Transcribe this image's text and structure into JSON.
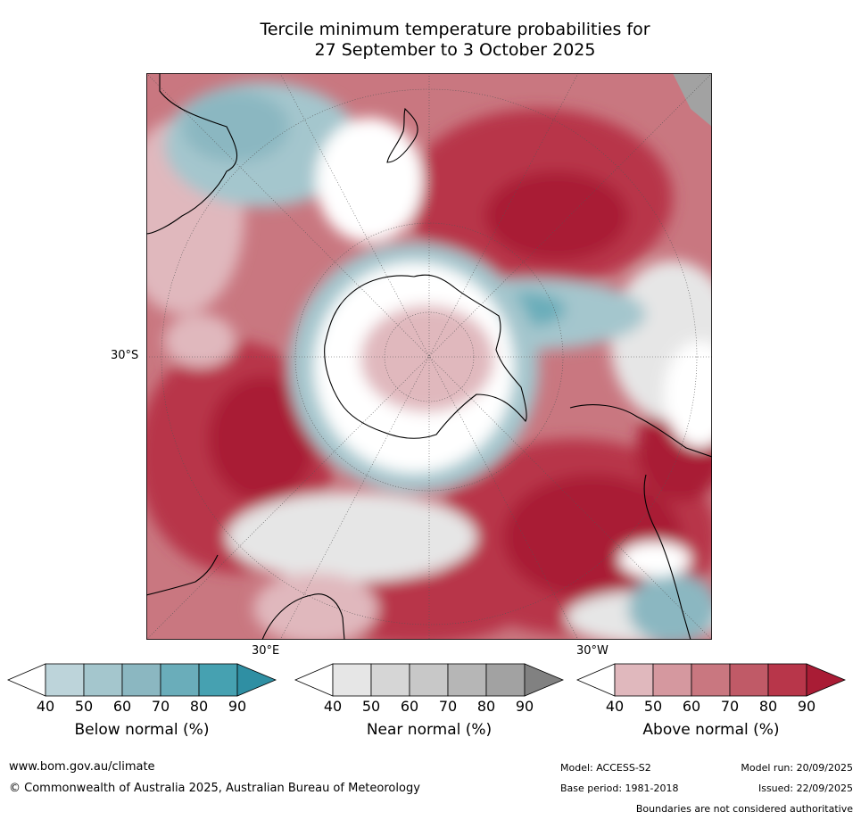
{
  "title": {
    "line1": "Tercile minimum temperature probabilities for",
    "line2": "27 September to 3 October 2025"
  },
  "map": {
    "lat_label": "30°S",
    "lon_label_east": "30°E",
    "lon_label_west": "30°W"
  },
  "colorbars": [
    {
      "name": "below",
      "title": "Below normal (%)",
      "ticks": [
        "40",
        "50",
        "60",
        "70",
        "80",
        "90"
      ],
      "colors": [
        "#ffffff",
        "#bdd4da",
        "#a4c6cd",
        "#8bb7c1",
        "#6aadba",
        "#46a1b1",
        "#2f8fa3"
      ]
    },
    {
      "name": "near",
      "title": "Near normal (%)",
      "ticks": [
        "40",
        "50",
        "60",
        "70",
        "80",
        "90"
      ],
      "colors": [
        "#ffffff",
        "#e6e6e6",
        "#d6d6d6",
        "#c8c8c8",
        "#b6b6b6",
        "#a2a2a2",
        "#818181"
      ]
    },
    {
      "name": "above",
      "title": "Above normal (%)",
      "ticks": [
        "40",
        "50",
        "60",
        "70",
        "80",
        "90"
      ],
      "colors": [
        "#ffffff",
        "#e0b8bd",
        "#d5989f",
        "#c97780",
        "#c05a67",
        "#b8364a",
        "#a91c35"
      ]
    }
  ],
  "footer": {
    "website": "www.bom.gov.au/climate",
    "copyright": "© Commonwealth of Australia 2025, Australian Bureau of Meteorology",
    "model": "Model: ACCESS-S2",
    "model_run": "Model run: 20/09/2025",
    "base_period": "Base period: 1981-2018",
    "issued": "Issued: 22/09/2025",
    "disclaimer": "Boundaries are not considered authoritative"
  }
}
